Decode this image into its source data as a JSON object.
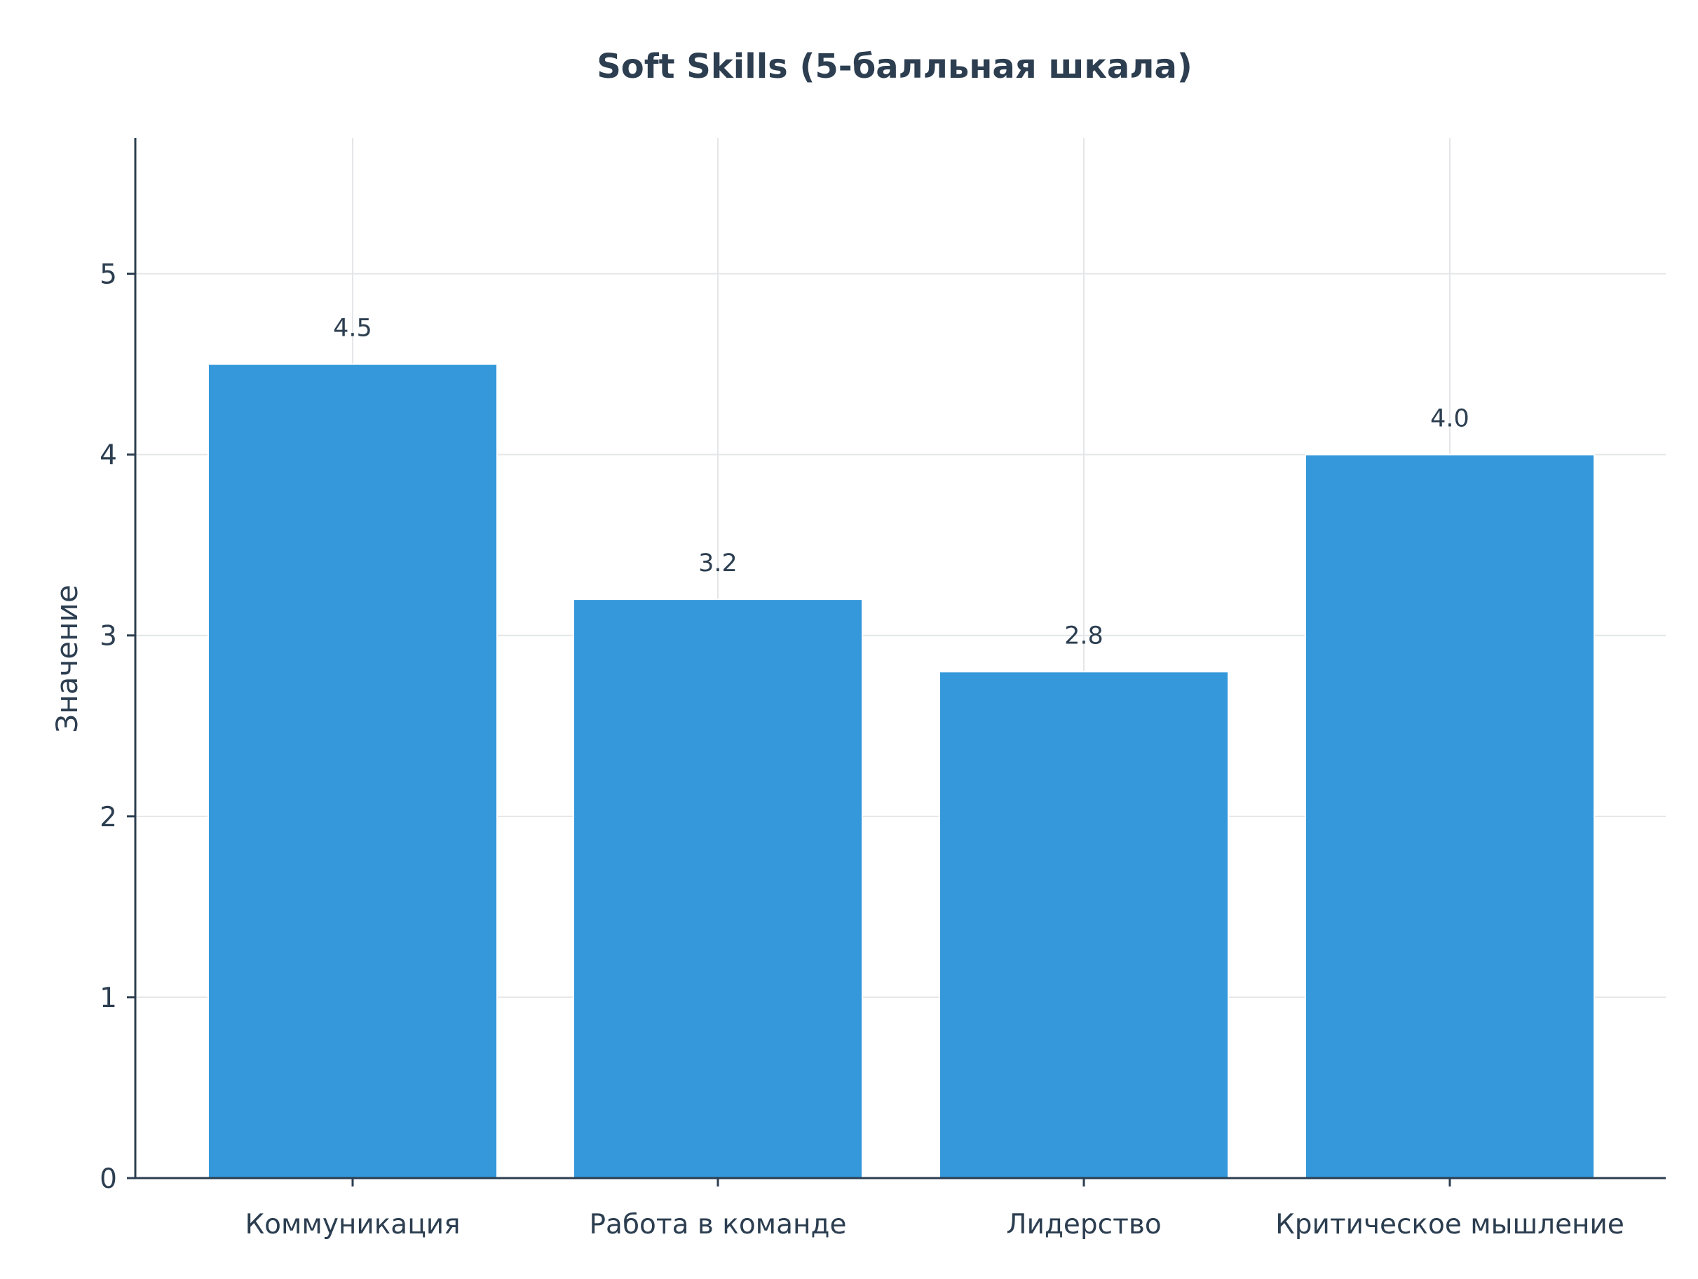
{
  "chart_data": {
    "type": "bar",
    "title": "Soft Skills (5-балльная шкала)",
    "xlabel": "",
    "ylabel": "Значение",
    "categories": [
      "Коммуникация",
      "Работа в команде",
      "Лидерство",
      "Критическое мышление"
    ],
    "values": [
      4.5,
      3.2,
      2.8,
      4.0
    ],
    "value_labels": [
      "4.5",
      "3.2",
      "2.8",
      "4.0"
    ],
    "yticks": [
      0,
      1,
      2,
      3,
      4,
      5
    ],
    "ylim": [
      0,
      5.75
    ],
    "grid": true,
    "bar_color": "#3498db",
    "text_color": "#2c3e50",
    "grid_color": "#e4e6e8"
  }
}
